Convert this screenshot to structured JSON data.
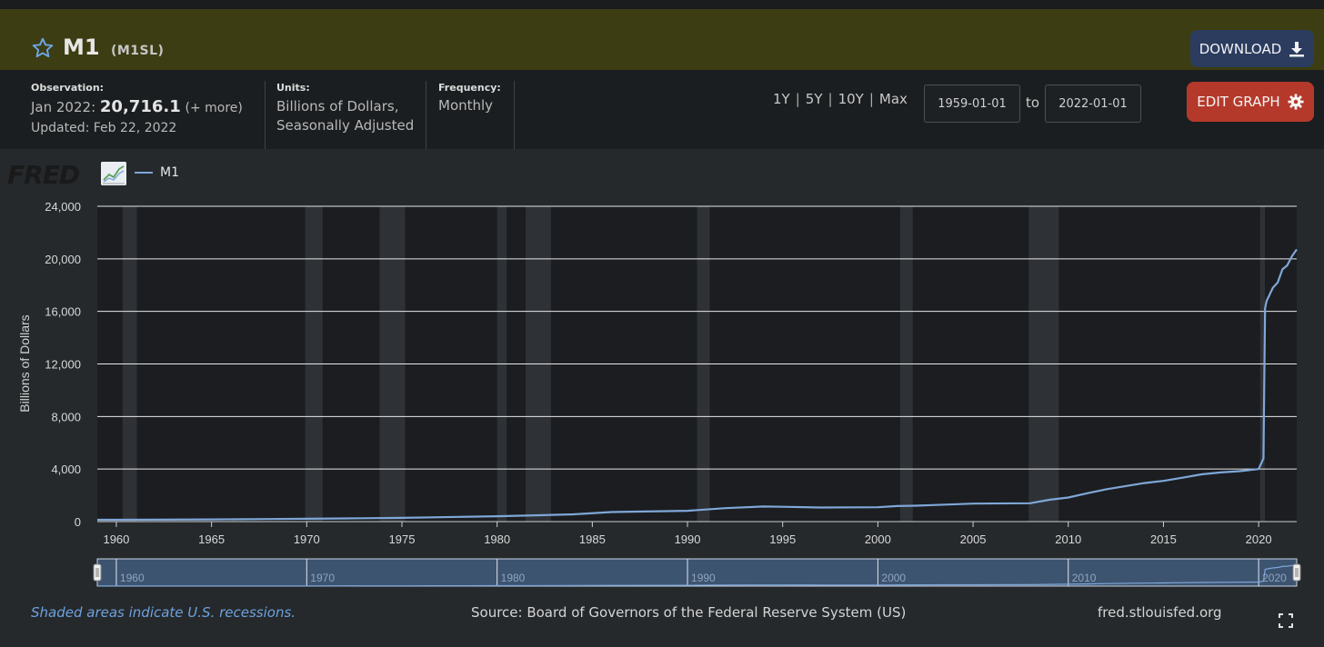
{
  "series": {
    "name": "M1",
    "id": "(M1SL)"
  },
  "toolbar": {
    "download_label": "DOWNLOAD",
    "edit_label": "EDIT GRAPH"
  },
  "observation": {
    "label": "Observation:",
    "period": "Jan 2022:",
    "value": "20,716.1",
    "more": "(+ more)",
    "updated": "Updated: Feb 22, 2022"
  },
  "units": {
    "label": "Units:",
    "line1": "Billions of Dollars,",
    "line2": "Seasonally Adjusted"
  },
  "frequency": {
    "label": "Frequency:",
    "value": "Monthly"
  },
  "ranges": [
    "1Y",
    "5Y",
    "10Y",
    "Max"
  ],
  "date_range": {
    "start": "1959-01-01",
    "end": "2022-01-01",
    "to_label": "to"
  },
  "legend_label": "M1",
  "logo_text": "FRED",
  "footer": {
    "recessions_note": "Shaded areas indicate U.S. recessions.",
    "source": "Source: Board of Governors of the Federal Reserve System (US)",
    "site": "fred.stlouisfed.org"
  },
  "icons": {
    "favorite": "star-icon",
    "download": "download-icon",
    "edit": "gear-icon",
    "legend": "line-chart-icon",
    "fullscreen": "expand-icon"
  },
  "colors": {
    "series_line": "#7fa7d8",
    "title_bar": "#3c3d12",
    "download_button": "#2b3c5f",
    "edit_button": "#b5392a",
    "recession_shading": "#2e3236",
    "plot_background": "#1b1d20"
  },
  "chart_data": {
    "type": "line",
    "title": "M1",
    "xlabel": "",
    "ylabel": "Billions of Dollars",
    "xlim": [
      1959,
      2022
    ],
    "ylim": [
      0,
      24000
    ],
    "yticks": [
      0,
      4000,
      8000,
      12000,
      16000,
      20000,
      24000
    ],
    "ytick_labels": [
      "0",
      "4,000",
      "8,000",
      "12,000",
      "16,000",
      "20,000",
      "24,000"
    ],
    "xticks": [
      1960,
      1965,
      1970,
      1975,
      1980,
      1985,
      1990,
      1995,
      2000,
      2005,
      2010,
      2015,
      2020
    ],
    "navigator_ticks": [
      1960,
      1970,
      1980,
      1990,
      2000,
      2010,
      2020
    ],
    "grid": true,
    "legend_position": "top-left",
    "recessions": [
      [
        1960.33,
        1961.08
      ],
      [
        1969.92,
        1970.83
      ],
      [
        1973.83,
        1975.17
      ],
      [
        1980.0,
        1980.5
      ],
      [
        1981.5,
        1982.83
      ],
      [
        1990.5,
        1991.17
      ],
      [
        2001.17,
        2001.83
      ],
      [
        2007.92,
        2009.5
      ],
      [
        2020.08,
        2020.33
      ]
    ],
    "series": [
      {
        "name": "M1",
        "x": [
          1959,
          1962,
          1965,
          1968,
          1970,
          1973,
          1975,
          1978,
          1980,
          1982,
          1984,
          1986,
          1987,
          1990,
          1992,
          1994,
          1995,
          1997,
          2000,
          2001,
          2002,
          2005,
          2008,
          2009,
          2010,
          2011,
          2012,
          2014,
          2015,
          2016,
          2017,
          2018,
          2019,
          2020.0,
          2020.25,
          2020.34,
          2020.42,
          2020.75,
          2021.0,
          2021.25,
          2021.5,
          2021.75,
          2022.0
        ],
        "y": [
          139,
          147,
          168,
          197,
          214,
          253,
          287,
          357,
          408,
          475,
          553,
          725,
          752,
          826,
          1026,
          1150,
          1130,
          1070,
          1090,
          1180,
          1210,
          1370,
          1400,
          1660,
          1830,
          2160,
          2460,
          2930,
          3100,
          3340,
          3600,
          3740,
          3840,
          4000,
          4800,
          16240,
          16800,
          17800,
          18200,
          19200,
          19500,
          20200,
          20716
        ]
      }
    ]
  }
}
